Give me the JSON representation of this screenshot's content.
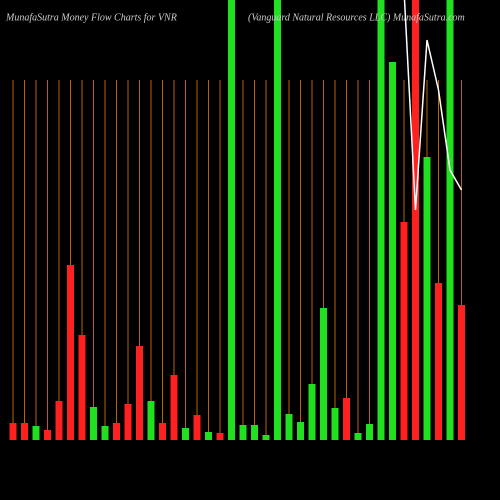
{
  "chart_data": {
    "type": "bar",
    "title": "MunafaSutra  Money Flow  Charts for VNR",
    "subtitle": "(Vanguard Natural Resources LLC) MunafaSutra.com",
    "categories": [
      null,
      null,
      null,
      null,
      null,
      null,
      null,
      null,
      null,
      null,
      null,
      null,
      null,
      null,
      null,
      null,
      null,
      null,
      null,
      null,
      null,
      null,
      null,
      null,
      null,
      null,
      null,
      null,
      null,
      null,
      null,
      null,
      null,
      null,
      null,
      null,
      null,
      null,
      null,
      null
    ],
    "values": [
      17,
      17,
      14,
      10,
      39,
      175,
      105,
      33,
      14,
      17,
      36,
      94,
      39,
      17,
      65,
      12,
      25,
      8,
      7,
      440,
      15,
      15,
      5,
      440,
      26,
      18,
      56,
      132,
      32,
      42,
      7,
      16,
      440,
      378,
      218,
      440,
      283,
      157,
      440,
      135
    ],
    "colors": [
      "#ff2020",
      "#ff2020",
      "#20e020",
      "#ff2020",
      "#ff2020",
      "#ff2020",
      "#ff2020",
      "#20e020",
      "#20e020",
      "#ff2020",
      "#ff2020",
      "#ff2020",
      "#20e020",
      "#ff2020",
      "#ff2020",
      "#20e020",
      "#ff2020",
      "#20e020",
      "#ff2020",
      "#20e020",
      "#20e020",
      "#20e020",
      "#20e020",
      "#20e020",
      "#20e020",
      "#20e020",
      "#20e020",
      "#20e020",
      "#20e020",
      "#ff2020",
      "#20e020",
      "#20e020",
      "#20e020",
      "#20e020",
      "#ff2020",
      "#ff2020",
      "#20e020",
      "#ff2020",
      "#20e020",
      "#ff2020"
    ],
    "line": {
      "color": "#ffffff",
      "values": [
        null,
        null,
        null,
        null,
        null,
        null,
        null,
        null,
        null,
        null,
        null,
        null,
        null,
        null,
        null,
        null,
        null,
        null,
        null,
        null,
        null,
        null,
        null,
        null,
        null,
        null,
        null,
        null,
        null,
        null,
        null,
        null,
        null,
        null,
        450,
        230,
        400,
        350,
        270,
        250
      ]
    },
    "ylim": [
      0,
      440
    ]
  }
}
